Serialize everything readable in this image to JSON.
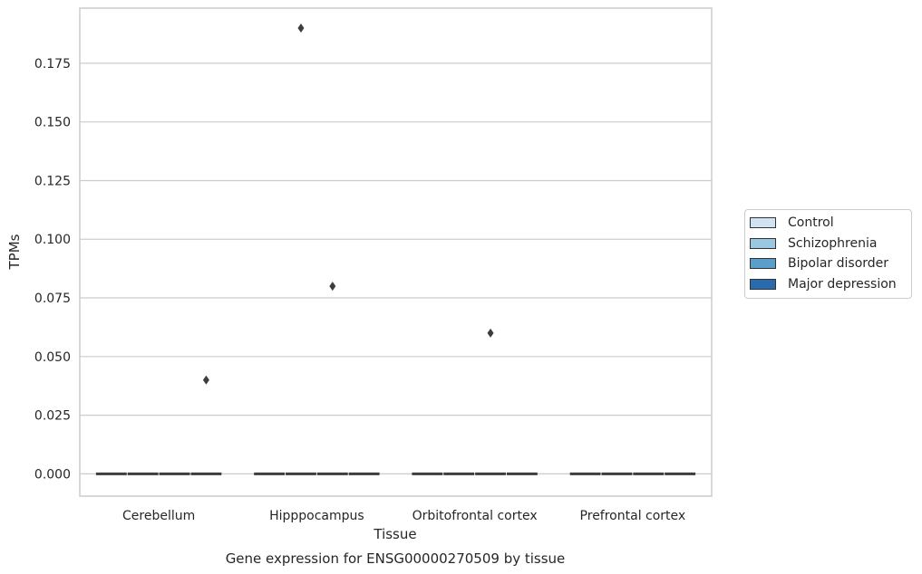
{
  "chart_data": {
    "type": "box",
    "title": "Gene expression for ENSG00000270509 by tissue",
    "xlabel": "Tissue",
    "ylabel": "TPMs",
    "categories": [
      "Cerebellum",
      "Hipppocampus",
      "Orbitofrontal cortex",
      "Prefrontal cortex"
    ],
    "ylim": [
      -0.0095,
      0.1985
    ],
    "yticks": [
      0.0,
      0.025,
      0.05,
      0.075,
      0.1,
      0.125,
      0.15,
      0.175
    ],
    "ytick_labels": [
      "0.000",
      "0.025",
      "0.050",
      "0.075",
      "0.100",
      "0.125",
      "0.150",
      "0.175"
    ],
    "grid": true,
    "legend_position": "right",
    "series": [
      {
        "name": "Control",
        "color": "#d1e2f2",
        "median": [
          0,
          0,
          0,
          0
        ],
        "outliers": [
          [],
          [],
          [],
          []
        ]
      },
      {
        "name": "Schizophrenia",
        "color": "#9ac8e0",
        "median": [
          0,
          0,
          0,
          0
        ],
        "outliers": [
          [],
          [
            0.19
          ],
          [],
          []
        ]
      },
      {
        "name": "Bipolar disorder",
        "color": "#5a9fcb",
        "median": [
          0,
          0,
          0,
          0
        ],
        "outliers": [
          [],
          [
            0.08
          ],
          [
            0.06
          ],
          []
        ]
      },
      {
        "name": "Major depression",
        "color": "#2a6aaf",
        "median": [
          0,
          0,
          0,
          0
        ],
        "outliers": [
          [
            0.04
          ],
          [],
          [],
          []
        ]
      }
    ]
  }
}
